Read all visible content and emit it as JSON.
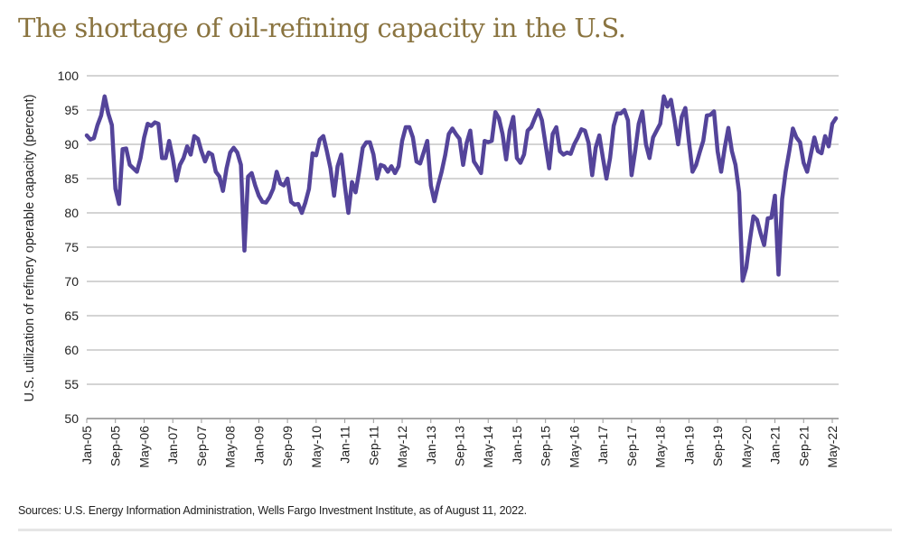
{
  "title": "The shortage of oil-refining capacity in the U.S.",
  "source": "Sources: U.S. Energy Information Administration, Wells Fargo Investment Institute, as of August 11, 2022.",
  "colors": {
    "title": "#8a7440",
    "line": "#54449a",
    "grid": "#d4d4d4"
  },
  "chart_data": {
    "type": "line",
    "title": "The shortage of oil-refining capacity in the U.S.",
    "xlabel": "",
    "ylabel": "U.S. utilization of refinery operable capacity (percent)",
    "ylim": [
      50,
      100
    ],
    "yticks": [
      50,
      55,
      60,
      65,
      70,
      75,
      80,
      85,
      90,
      95,
      100
    ],
    "grid": true,
    "x_start": "Jan-05",
    "x_frequency": "monthly",
    "xtick_labels": [
      "Jan-05",
      "Sep-05",
      "May-06",
      "Jan-07",
      "Sep-07",
      "May-08",
      "Jan-09",
      "Sep-09",
      "May-10",
      "Jan-11",
      "Sep-11",
      "May-12",
      "Jan-13",
      "Sep-13",
      "May-14",
      "Jan-15",
      "Sep-15",
      "May-16",
      "Jan-17",
      "Sep-17",
      "May-18",
      "Jan-19",
      "Sep-19",
      "May-20",
      "Jan-21",
      "Sep-21",
      "May-22"
    ],
    "series": [
      {
        "values": [
          91.3,
          90.7,
          90.9,
          92.8,
          94.2,
          97.0,
          94.5,
          92.8,
          83.5,
          81.3,
          89.3,
          89.4,
          87.0,
          86.5,
          86.0,
          88.0,
          91.0,
          93.0,
          92.7,
          93.2,
          93.0,
          88.0,
          88.0,
          90.5,
          88.0,
          84.7,
          87.0,
          88.0,
          89.7,
          88.5,
          91.2,
          90.8,
          89.0,
          87.5,
          88.8,
          88.5,
          86.0,
          85.3,
          83.2,
          86.5,
          88.8,
          89.5,
          88.8,
          87.0,
          74.5,
          85.3,
          85.8,
          84.0,
          82.5,
          81.6,
          81.5,
          82.3,
          83.5,
          86.0,
          84.3,
          84.0,
          85.0,
          81.6,
          81.2,
          81.3,
          80.0,
          81.5,
          83.5,
          88.7,
          88.4,
          90.7,
          91.2,
          89.0,
          86.5,
          82.5,
          86.8,
          88.5,
          84.0,
          80.0,
          84.5,
          83.0,
          86.0,
          89.5,
          90.3,
          90.3,
          88.5,
          85.0,
          87.0,
          86.8,
          86.0,
          86.8,
          85.8,
          86.8,
          90.5,
          92.5,
          92.5,
          91.0,
          87.5,
          87.2,
          88.8,
          90.5,
          84.0,
          81.7,
          84.0,
          86.0,
          88.4,
          91.5,
          92.3,
          91.5,
          90.8,
          87.0,
          90.2,
          92.0,
          87.5,
          86.7,
          85.8,
          90.5,
          90.3,
          90.5,
          94.7,
          93.8,
          91.5,
          87.8,
          92.0,
          94.0,
          88.0,
          87.3,
          88.5,
          92.0,
          92.5,
          93.8,
          95.0,
          93.5,
          90.0,
          86.5,
          91.5,
          92.5,
          89.0,
          88.5,
          88.8,
          88.6,
          90.0,
          91.0,
          92.2,
          92.0,
          90.2,
          85.5,
          89.5,
          91.3,
          88.0,
          85.0,
          88.0,
          92.7,
          94.5,
          94.5,
          95.0,
          93.5,
          85.5,
          89.0,
          93.0,
          94.8,
          90.0,
          88.0,
          91.0,
          92.0,
          93.0,
          97.0,
          95.5,
          96.5,
          93.5,
          90.0,
          94.0,
          95.3,
          90.5,
          86.0,
          87.0,
          88.8,
          90.5,
          94.2,
          94.3,
          94.8,
          89.0,
          86.0,
          89.5,
          92.4,
          89.0,
          87.0,
          83.0,
          70.1,
          72.0,
          76.0,
          79.5,
          79.0,
          77.0,
          75.3,
          79.2,
          79.3,
          82.5,
          71.0,
          82.0,
          86.0,
          89.0,
          92.3,
          91.0,
          90.3,
          87.3,
          86.0,
          88.5,
          91.0,
          89.0,
          88.7,
          91.2,
          89.7,
          93.0,
          93.8
        ]
      }
    ]
  }
}
